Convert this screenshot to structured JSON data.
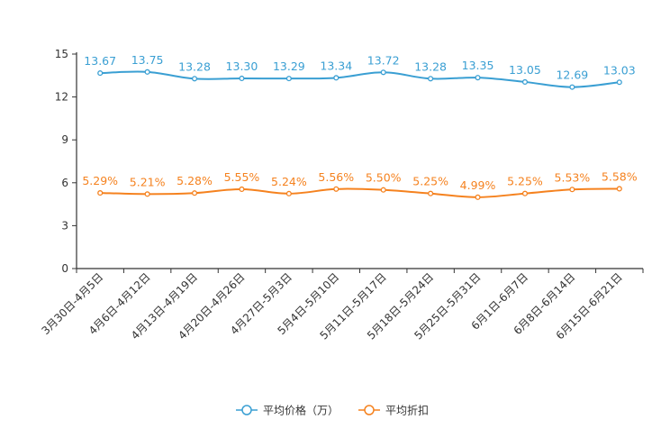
{
  "chart_data": {
    "type": "line",
    "title": "",
    "xlabel": "",
    "ylabel": "",
    "ylim": [
      0,
      15
    ],
    "yticks": [
      0,
      3,
      6,
      9,
      12,
      15
    ],
    "categories": [
      "3月30日-4月5日",
      "4月6日-4月12日",
      "4月13日-4月19日",
      "4月20日-4月26日",
      "4月27日-5月3日",
      "5月4日-5月10日",
      "5月11日-5月17日",
      "5月18日-5月24日",
      "5月25日-5月31日",
      "6月1日-6月7日",
      "6月8日-6月14日",
      "6月15日-6月21日"
    ],
    "series": [
      {
        "name": "平均价格（万）",
        "color": "#3a9fd3",
        "values": [
          13.67,
          13.75,
          13.28,
          13.3,
          13.29,
          13.34,
          13.72,
          13.28,
          13.35,
          13.05,
          12.69,
          13.03
        ],
        "labels": [
          "13.67",
          "13.75",
          "13.28",
          "13.30",
          "13.29",
          "13.34",
          "13.72",
          "13.28",
          "13.35",
          "13.05",
          "12.69",
          "13.03"
        ]
      },
      {
        "name": "平均折扣",
        "color": "#f5821f",
        "values": [
          5.29,
          5.21,
          5.28,
          5.55,
          5.24,
          5.56,
          5.5,
          5.25,
          4.99,
          5.25,
          5.53,
          5.58
        ],
        "labels": [
          "5.29%",
          "5.21%",
          "5.28%",
          "5.55%",
          "5.24%",
          "5.56%",
          "5.50%",
          "5.25%",
          "4.99%",
          "5.25%",
          "5.53%",
          "5.58%"
        ]
      }
    ],
    "legend_position": "bottom-center"
  }
}
